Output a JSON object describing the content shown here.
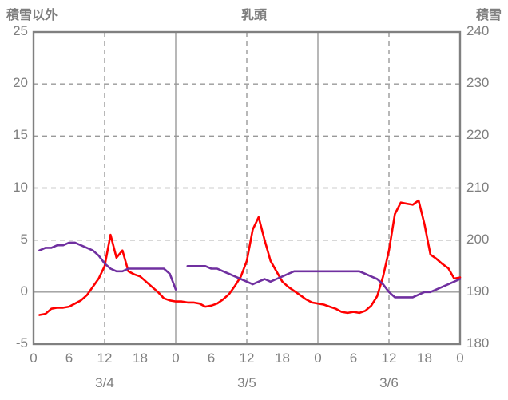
{
  "header": {
    "left": "積雪以外",
    "center": "乳頭",
    "right": "積雪"
  },
  "colors": {
    "red_series": "#ff0000",
    "purple_series": "#7030a0",
    "axis_text": "#7f7f7f",
    "grid": "#999999",
    "border": "#808080"
  },
  "chart_data": {
    "type": "line",
    "title": "乳頭",
    "left_axis": {
      "label": "積雪以外",
      "min": -5,
      "max": 25,
      "ticks": [
        25,
        20,
        15,
        10,
        5,
        0,
        -5
      ]
    },
    "right_axis": {
      "label": "積雪",
      "min": 180,
      "max": 240,
      "ticks": [
        240,
        230,
        220,
        210,
        200,
        190,
        180
      ]
    },
    "x_axis": {
      "total_hours": 72,
      "hour_tick_step": 6,
      "hour_tick_labels": [
        "0",
        "6",
        "12",
        "18",
        "0",
        "6",
        "12",
        "18",
        "0",
        "6",
        "12",
        "18",
        "0"
      ],
      "day_labels": [
        "3/4",
        "3/5",
        "3/6"
      ],
      "day_label_hours": [
        12,
        36,
        60
      ],
      "solid_vlines_hours": [
        24,
        48
      ],
      "dashed_vlines_hours": [
        12,
        36,
        60
      ]
    },
    "grid": "dashed horizontal at 5-unit steps, solid line at 0, solid vertical at day boundaries, dashed vertical at noons",
    "series": [
      {
        "name": "積雪以外",
        "color": "#ff0000",
        "axis": "left",
        "x_start": 1,
        "x_step": 1,
        "values": [
          -2.2,
          -2.1,
          -1.6,
          -1.5,
          -1.5,
          -1.4,
          -1.1,
          -0.8,
          -0.3,
          0.5,
          1.3,
          2.5,
          5.5,
          3.3,
          4.0,
          2.0,
          1.7,
          1.5,
          1.0,
          0.5,
          0.0,
          -0.6,
          -0.8,
          -0.9,
          -0.9,
          -1.0,
          -1.0,
          -1.1,
          -1.4,
          -1.3,
          -1.1,
          -0.7,
          -0.2,
          0.6,
          1.5,
          3.0,
          6.0,
          7.2,
          5.0,
          3.0,
          2.0,
          1.0,
          0.5,
          0.1,
          -0.3,
          -0.7,
          -1.0,
          -1.1,
          -1.2,
          -1.4,
          -1.6,
          -1.9,
          -2.0,
          -1.9,
          -2.0,
          -1.8,
          -1.3,
          -0.4,
          1.5,
          4.0,
          7.5,
          8.6,
          8.5,
          8.4,
          8.8,
          6.5,
          3.6,
          3.2,
          2.7,
          2.3,
          1.3,
          1.4
        ]
      },
      {
        "name": "積雪",
        "color": "#7030a0",
        "axis": "right",
        "x_start": 1,
        "x_step": 1,
        "values": [
          198,
          198.5,
          198.5,
          199,
          199,
          199.5,
          199.5,
          199,
          198.5,
          198,
          197,
          195.5,
          194.5,
          194,
          194,
          194.5,
          194.5,
          194.5,
          194.5,
          194.5,
          194.5,
          194.5,
          193.5,
          190.5,
          null,
          195,
          195,
          195,
          195,
          194.5,
          194.5,
          194,
          193.5,
          193,
          192.5,
          192,
          191.5,
          192,
          192.5,
          192,
          192.5,
          193,
          193.5,
          194,
          194,
          194,
          194,
          194,
          194,
          194,
          194,
          194,
          194,
          194,
          194,
          193.5,
          193,
          192.5,
          191.5,
          190,
          189,
          189,
          189,
          189,
          189.5,
          190,
          190,
          190.5,
          191,
          191.5,
          192,
          192.5
        ]
      }
    ]
  }
}
